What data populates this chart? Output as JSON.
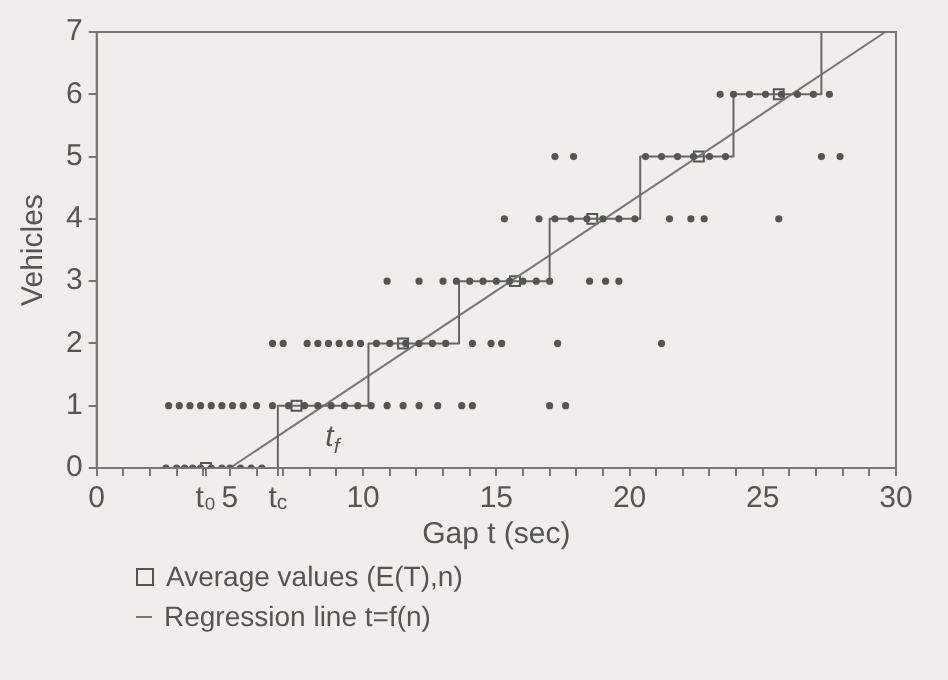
{
  "chart_data": {
    "type": "scatter",
    "xlabel": "Gap t (sec)",
    "ylabel": "Vehicles",
    "xlim": [
      0,
      30
    ],
    "ylim": [
      0,
      7
    ],
    "xticks": [
      0,
      {
        "value": 1,
        "label": null
      },
      {
        "value": 2,
        "label": null
      },
      {
        "value": 3,
        "label": null
      },
      {
        "value": 4,
        "label": null
      },
      {
        "value": 4.1,
        "label": "t₀"
      },
      5,
      {
        "value": 6,
        "label": null
      },
      {
        "value": 6.8,
        "label": "t$_{c}$"
      },
      {
        "value": 7,
        "label": null
      },
      {
        "value": 8,
        "label": null
      },
      {
        "value": 9,
        "label": null
      },
      10,
      {
        "value": 11,
        "label": null
      },
      {
        "value": 12,
        "label": null
      },
      {
        "value": 13,
        "label": null
      },
      {
        "value": 14,
        "label": null
      },
      15,
      {
        "value": 16,
        "label": null
      },
      {
        "value": 17,
        "label": null
      },
      {
        "value": 18,
        "label": null
      },
      {
        "value": 19,
        "label": null
      },
      20,
      {
        "value": 21,
        "label": null
      },
      {
        "value": 22,
        "label": null
      },
      {
        "value": 23,
        "label": null
      },
      {
        "value": 24,
        "label": null
      },
      25,
      {
        "value": 26,
        "label": null
      },
      {
        "value": 27,
        "label": null
      },
      {
        "value": 28,
        "label": null
      },
      {
        "value": 29,
        "label": null
      },
      30
    ],
    "yticks": [
      0,
      1,
      2,
      3,
      4,
      5,
      6,
      7
    ],
    "grid": false,
    "legend": "bottom",
    "annotations": [
      {
        "text": "t$_{f}$",
        "x": 10.2,
        "y": 1
      }
    ],
    "series": [
      {
        "color": "#555555",
        "marker": "circle",
        "x": [
          2.6,
          3.0,
          3.3,
          3.6,
          3.9,
          4.3,
          4.7,
          5.0,
          5.4,
          5.8,
          6.2,
          2.7,
          3.1,
          3.5,
          3.9,
          4.3,
          4.7,
          5.1,
          5.5,
          6.0,
          6.6,
          7.2,
          7.8,
          8.3,
          8.8,
          9.3,
          9.8,
          10.3,
          10.9,
          11.5,
          12.1,
          12.8,
          13.7,
          14.1,
          17.0,
          17.6,
          6.6,
          7.0,
          7.9,
          8.3,
          8.7,
          9.1,
          9.5,
          9.9,
          10.5,
          11.0,
          11.6,
          12.1,
          12.6,
          13.1,
          14.1,
          14.8,
          15.2,
          17.3,
          21.2,
          10.9,
          12.1,
          13.0,
          13.5,
          14.0,
          14.5,
          15.0,
          15.5,
          16.0,
          16.5,
          17.0,
          18.5,
          19.1,
          19.6,
          15.3,
          16.6,
          17.2,
          17.8,
          18.4,
          19.0,
          19.6,
          20.2,
          21.5,
          22.3,
          22.8,
          25.6,
          17.2,
          17.9,
          20.6,
          21.2,
          21.8,
          22.4,
          23.0,
          23.6,
          27.2,
          27.9,
          23.4,
          23.9,
          24.5,
          25.1,
          25.7,
          26.3,
          26.9,
          27.5
        ],
        "values": [
          0,
          0,
          0,
          0,
          0,
          0,
          0,
          0,
          0,
          0,
          0,
          1,
          1,
          1,
          1,
          1,
          1,
          1,
          1,
          1,
          1,
          1,
          1,
          1,
          1,
          1,
          1,
          1,
          1,
          1,
          1,
          1,
          1,
          1,
          1,
          1,
          2,
          2,
          2,
          2,
          2,
          2,
          2,
          2,
          2,
          2,
          2,
          2,
          2,
          2,
          2,
          2,
          2,
          2,
          2,
          3,
          3,
          3,
          3,
          3,
          3,
          3,
          3,
          3,
          3,
          3,
          3,
          3,
          3,
          4,
          4,
          4,
          4,
          4,
          4,
          4,
          4,
          4,
          4,
          4,
          4,
          5,
          5,
          5,
          5,
          5,
          5,
          5,
          5,
          5,
          5,
          6,
          6,
          6,
          6,
          6,
          6,
          6,
          6
        ]
      },
      {
        "type": "step",
        "color": "#666666",
        "marker": "none",
        "x": [
          3.0,
          6.8,
          10.2,
          13.6,
          17.0,
          20.4,
          23.9,
          27.2
        ],
        "values": [
          0,
          1,
          2,
          3,
          4,
          5,
          6,
          7
        ]
      },
      {
        "type": "line",
        "name": "Regression line t=f(n)",
        "color": "#777777",
        "marker": "none",
        "x": [
          5.0,
          29.6
        ],
        "values": [
          0,
          7
        ]
      },
      {
        "type": "scatter",
        "name": "Average values (E(T),n)",
        "color": "#555555",
        "marker": "square",
        "x": [
          4.1,
          7.5,
          11.5,
          15.7,
          18.6,
          22.6,
          25.6
        ],
        "values": [
          0,
          1,
          2,
          3,
          4,
          5,
          6
        ]
      }
    ]
  }
}
